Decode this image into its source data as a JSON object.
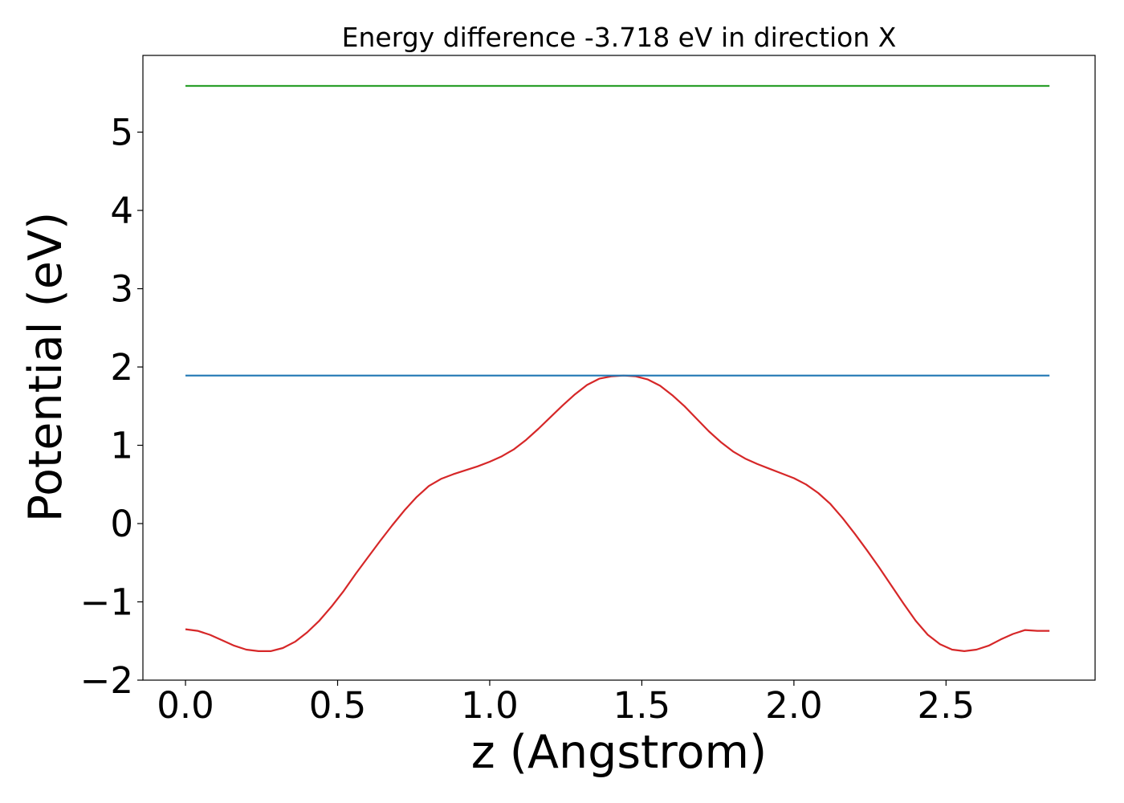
{
  "chart_data": {
    "type": "line",
    "title": "Energy difference -3.718 eV in direction X",
    "xlabel": "z (Angstrom)",
    "ylabel": "Potential (eV)",
    "xlim": [
      -0.14,
      2.99
    ],
    "ylim": [
      -2.0,
      5.98
    ],
    "xticks": [
      0.0,
      0.5,
      1.0,
      1.5,
      2.0,
      2.5
    ],
    "xtick_labels": [
      "0.0",
      "0.5",
      "1.0",
      "1.5",
      "2.0",
      "2.5"
    ],
    "yticks": [
      -2,
      -1,
      0,
      1,
      2,
      3,
      4,
      5
    ],
    "ytick_labels": [
      "−2",
      "−1",
      "0",
      "1",
      "2",
      "3",
      "4",
      "5"
    ],
    "grid": false,
    "legend": false,
    "series": [
      {
        "color": "#d62728",
        "x": [
          0.0,
          0.04,
          0.08,
          0.12,
          0.16,
          0.2,
          0.24,
          0.28,
          0.32,
          0.36,
          0.4,
          0.44,
          0.48,
          0.52,
          0.56,
          0.6,
          0.64,
          0.68,
          0.72,
          0.76,
          0.8,
          0.84,
          0.88,
          0.92,
          0.96,
          1.0,
          1.04,
          1.08,
          1.12,
          1.16,
          1.2,
          1.24,
          1.28,
          1.32,
          1.36,
          1.4,
          1.44,
          1.48,
          1.52,
          1.56,
          1.6,
          1.64,
          1.68,
          1.72,
          1.76,
          1.8,
          1.84,
          1.88,
          1.92,
          1.96,
          2.0,
          2.04,
          2.08,
          2.12,
          2.16,
          2.2,
          2.24,
          2.28,
          2.32,
          2.36,
          2.4,
          2.44,
          2.48,
          2.52,
          2.56,
          2.6,
          2.64,
          2.68,
          2.72,
          2.76,
          2.8,
          2.84
        ],
        "y": [
          -1.35,
          -1.37,
          -1.42,
          -1.49,
          -1.56,
          -1.61,
          -1.63,
          -1.63,
          -1.59,
          -1.51,
          -1.39,
          -1.24,
          -1.06,
          -0.86,
          -0.64,
          -0.43,
          -0.22,
          -0.02,
          0.17,
          0.34,
          0.48,
          0.57,
          0.63,
          0.68,
          0.73,
          0.79,
          0.86,
          0.95,
          1.07,
          1.21,
          1.36,
          1.51,
          1.65,
          1.77,
          1.85,
          1.88,
          1.89,
          1.88,
          1.84,
          1.76,
          1.64,
          1.5,
          1.34,
          1.18,
          1.04,
          0.92,
          0.83,
          0.76,
          0.7,
          0.64,
          0.58,
          0.5,
          0.39,
          0.25,
          0.07,
          -0.13,
          -0.34,
          -0.56,
          -0.79,
          -1.02,
          -1.24,
          -1.42,
          -1.54,
          -1.61,
          -1.63,
          -1.61,
          -1.56,
          -1.48,
          -1.41,
          -1.36,
          -1.37,
          -1.37
        ]
      },
      {
        "color": "#1f77b4",
        "x": [
          0.0,
          2.84
        ],
        "y": [
          1.89,
          1.89
        ]
      },
      {
        "color": "#2ca02c",
        "x": [
          0.0,
          2.84
        ],
        "y": [
          5.59,
          5.59
        ]
      }
    ]
  }
}
